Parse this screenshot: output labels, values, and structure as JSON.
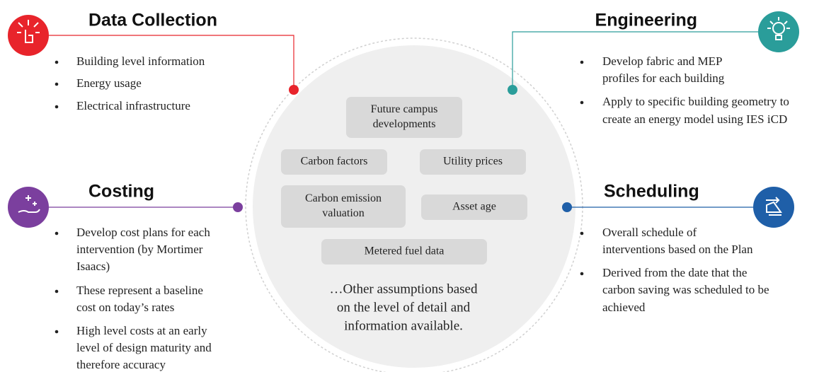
{
  "sections": [
    {
      "title": "Data Collection",
      "bullets": [
        [
          "Building level information"
        ],
        [
          "Energy usage"
        ],
        [
          "Electrical infrastructure"
        ]
      ]
    },
    {
      "title": "Engineering",
      "bullets": [
        [
          "Develop fabric and MEP",
          "profiles for each building"
        ],
        [
          "Apply to specific building geometry to",
          "create an energy model using IES iCD"
        ]
      ]
    },
    {
      "title": "Costing",
      "bullets": [
        [
          "Develop cost plans for each",
          "intervention (by Mortimer",
          "Isaacs)"
        ],
        [
          "These represent a baseline",
          "cost on today’s rates"
        ],
        [
          "High level costs at an early",
          "level of design maturity and",
          "therefore accuracy"
        ]
      ]
    },
    {
      "title": "Scheduling",
      "bullets": [
        [
          "Overall schedule of",
          "interventions based on the Plan"
        ],
        [
          "Derived from the date that the",
          "carbon saving was scheduled to be",
          "achieved"
        ]
      ]
    }
  ],
  "center": {
    "boxes": [
      {
        "lines": [
          "Future campus",
          "developments"
        ]
      },
      {
        "lines": [
          "Carbon factors"
        ]
      },
      {
        "lines": [
          "Utility prices"
        ]
      },
      {
        "lines": [
          "Carbon emission",
          "valuation"
        ]
      },
      {
        "lines": [
          "Asset age"
        ]
      },
      {
        "lines": [
          "Metered fuel data"
        ]
      }
    ],
    "note": [
      "…Other assumptions based",
      "on the level of detail and",
      "information available."
    ]
  }
}
